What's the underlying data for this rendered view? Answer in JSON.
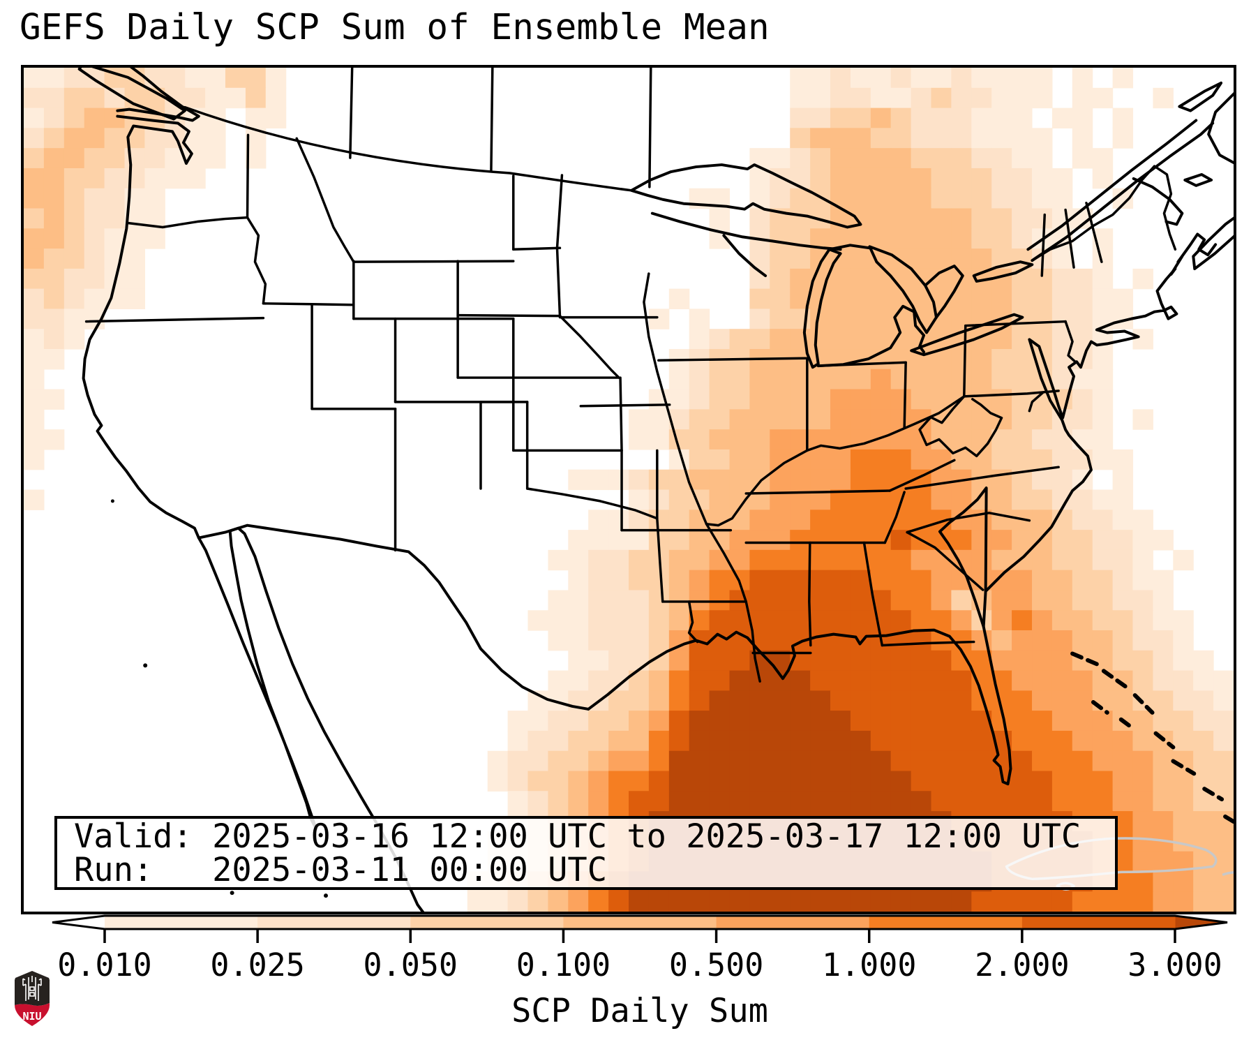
{
  "title": "GEFS Daily SCP Sum of Ensemble Mean",
  "info_box": {
    "line1": "Valid: 2025-03-16 12:00 UTC to 2025-03-17 12:00 UTC",
    "line2": "Run:   2025-03-11 00:00 UTC"
  },
  "colorbar": {
    "label": "SCP Daily Sum",
    "tick_labels": [
      "0.010",
      "0.025",
      "0.050",
      "0.100",
      "0.500",
      "1.000",
      "2.000",
      "3.000"
    ],
    "segment_colors": [
      "#feeddc",
      "#fde2c9",
      "#fdd2a8",
      "#fdbe85",
      "#fca35d",
      "#f57e22",
      "#dd5d0c"
    ],
    "under_arrow_color": "#ffffff",
    "over_arrow_color": "#b94708",
    "outline_color": "#000000"
  },
  "logo": {
    "text": "NIU"
  },
  "chart_data": {
    "type": "heatmap",
    "title": "GEFS Daily SCP Sum of Ensemble Mean",
    "variable": "SCP Daily Sum",
    "valid": "2025-03-16 12:00 UTC to 2025-03-17 12:00 UTC",
    "run": "2025-03-11 00:00 UTC",
    "region": "Continental United States and adjacent oceans",
    "levels": [
      0.01,
      0.025,
      0.05,
      0.1,
      0.5,
      1.0,
      2.0,
      3.0
    ],
    "level_bins": [
      "0.010-0.025",
      "0.025-0.050",
      "0.050-0.100",
      "0.100-0.500",
      "0.500-1.000",
      "1.000-2.000",
      "2.000-3.000",
      ">3.000"
    ],
    "palette": [
      "#feeddc",
      "#fde2c9",
      "#fdd2a8",
      "#fdbe85",
      "#fca35d",
      "#f57e22",
      "#dd5d0c",
      "#b94708"
    ],
    "maxima": [
      {
        "area": "Gulf of Mexico south of Louisiana/Florida panhandle",
        "value": ">3.000"
      },
      {
        "area": "Southeast US coast (GA/SC)",
        "value": "1.000-2.000"
      },
      {
        "area": "Pacific Northwest offshore",
        "value": "0.100-0.500"
      },
      {
        "area": "Northeast US / Mid-Atlantic",
        "value": "0.100-0.500"
      }
    ],
    "grid_cols": 60,
    "grid_rows": 42,
    "grid": [
      [
        "1122332211",
        "331.......",
        "..........",
        "........11",
        "2112112111",
        "1.1.1....."
      ],
      [
        "2233233221",
        "131.......",
        "..........",
        "........11",
        "2211232211",
        "1.11..1..."
      ],
      [
        "1234433211",
        ".11.......",
        "..........",
        "........22",
        "3343222111",
        ".11.1....."
      ],
      [
        "2344332211",
        ".1........",
        "..........",
        "........34",
        "4433222111",
        "1.1.1....."
      ],
      [
        "3443322111",
        ".1........",
        "..........",
        "......1123",
        "4444333221",
        "1.11......"
      ],
      [
        "443322111.",
        "..........",
        "..........",
        "......1223",
        "4444433322",
        "11.1......"
      ],
      [
        "4432211...",
        "..........",
        "..........",
        "...11.1233",
        "4444433322",
        "11..1....."
      ],
      [
        "3432211...",
        "..........",
        "..........",
        "....1.2333",
        "4444444332",
        "211......."
      ],
      [
        "4432111...",
        "..........",
        "..........",
        "....1.2334",
        "4444444332",
        "11.1......"
      ],
      [
        "433211....",
        "..........",
        "..........",
        "......2334",
        "4444444433",
        "21.1......"
      ],
      [
        "332211....",
        "..........",
        "..........",
        "......2344",
        "4444444443",
        "3221.1...."
      ],
      [
        "232111....",
        "..........",
        "..........",
        "..1...3344",
        "4444444443",
        "32211....."
      ],
      [
        "2211......",
        "..........",
        "..........",
        ".1.1..2334",
        "4444444443",
        "32211....."
      ],
      [
        "121.......",
        "..........",
        "..........",
        "...1233444",
        "4444444443",
        "3221.1...."
      ],
      [
        "11........",
        "..........",
        "..........",
        "..12334444",
        "4444444433",
        "3221......"
      ],
      [
        "1.........",
        "..........",
        "..........",
        "..12334444",
        "4454444433",
        "3211......"
      ],
      [
        "11........",
        "..........",
        "..........",
        ".112334444",
        "5555444443",
        "3321......"
      ],
      [
        "1.........",
        "..........",
        "..........",
        "1123344444",
        "5555544443",
        "3221.1...."
      ],
      [
        "11........",
        "..........",
        "..........",
        "1133444555",
        "5555544433",
        "2211......"
      ],
      [
        "1.........",
        "..........",
        "..........",
        "..13344555",
        "5666554433",
        "32211....."
      ],
      [
        "..........",
        "..........",
        ".......111",
        "2334444555",
        "5666655443",
        "221.1....."
      ],
      [
        "1.........",
        "..........",
        "..........",
        "1233444555",
        "6666655443",
        "32211....."
      ],
      [
        "..........",
        "..........",
        "........11",
        "2334445556",
        "6666665544",
        "432211...."
      ],
      [
        "..........",
        "..........",
        ".......111",
        "1334455566",
        "6667666554",
        "4332211..."
      ],
      [
        "..........",
        "..........",
        "......1122",
        "3344556666",
        "6666555544",
        "433221.1.."
      ],
      [
        "..........",
        "..........",
        ".......122",
        "3345667777",
        "7766655555",
        "4433211..."
      ],
      [
        "..........",
        "..........",
        "......1122",
        "2345677777",
        "7776653455",
        "4433221..."
      ],
      [
        "..........",
        "..........",
        ".....11122",
        "2346777777",
        "7777665356",
        "54433211.."
      ],
      [
        "..........",
        "..........",
        "......1122",
        "2357777777",
        "7777766545",
        "55443221.."
      ],
      [
        "..........",
        "..........",
        ".......112",
        "2357778877",
        "7777776655",
        "554433211."
      ],
      [
        "..........",
        "..........",
        "......1122",
        "3467788887",
        "7777777665",
        "5554432211"
      ],
      [
        "..........",
        "..........",
        ".....11223",
        "3467888888",
        "7777777666",
        "5554433221"
      ],
      [
        "..........",
        "..........",
        "....112233",
        "4578888888",
        "8777777766",
        "6555443322"
      ],
      [
        "..........",
        "..........",
        "....122334",
        "4678888888",
        "8877777776",
        "6655544332"
      ],
      [
        "..........",
        "..........",
        "...1223345",
        "5688888888",
        "8887777777",
        "6665554433"
      ],
      [
        "..........",
        "..........",
        "...1233456",
        "6788888888",
        "8888777777",
        "7666554433"
      ],
      [
        "..........",
        "..........",
        "....123456",
        "7788888888",
        "8888877777",
        "7666554433"
      ],
      [
        "..........",
        "..........",
        "....123456",
        "7888888888",
        "8888887777",
        "7766655444"
      ],
      [
        "..........",
        "..........",
        "...1123456",
        "7888888888",
        "8888888777",
        "7776655444"
      ],
      [
        "..........",
        "..........",
        "...1123456",
        "7888888888",
        "8888888877",
        "7776655544"
      ],
      [
        "..........",
        "..........",
        "..11234567",
        "8888888888",
        "8888888877",
        "7776665544"
      ],
      [
        "..........",
        "..........",
        "..11234567",
        "8888888888",
        "8888888777",
        "7766665544"
      ]
    ]
  }
}
